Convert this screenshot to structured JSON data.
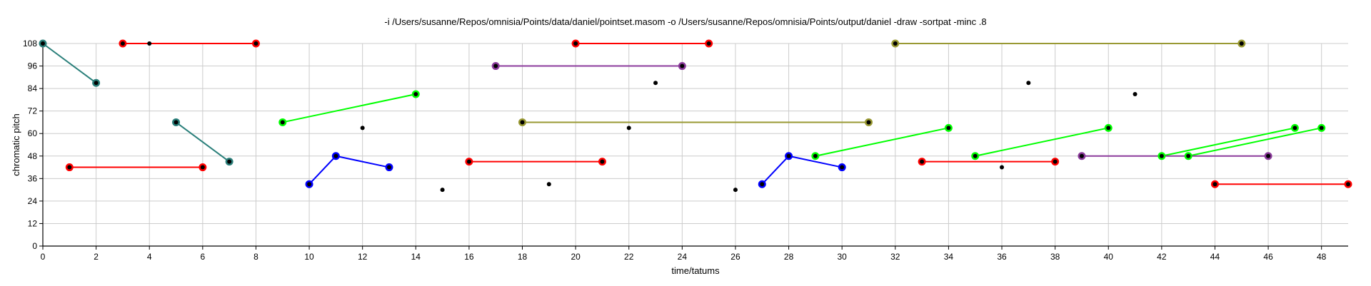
{
  "chart_data": {
    "type": "scatter",
    "title": "-i /Users/susanne/Repos/omnisia/Points/data/daniel/pointset.masom -o /Users/susanne/Repos/omnisia/Points/output/daniel -draw -sortpat -minc .8",
    "xlabel": "time/tatums",
    "ylabel": "chromatic pitch",
    "xlim": [
      0,
      49
    ],
    "ylim": [
      0,
      108
    ],
    "xticks": [
      0,
      2,
      4,
      6,
      8,
      10,
      12,
      14,
      16,
      18,
      20,
      22,
      24,
      26,
      28,
      30,
      32,
      34,
      36,
      38,
      40,
      42,
      44,
      46,
      48
    ],
    "yticks": [
      0,
      12,
      24,
      36,
      48,
      60,
      72,
      84,
      96,
      108
    ],
    "grid": true,
    "legend": "none",
    "point_color": "#000000",
    "points": [
      [
        0,
        108
      ],
      [
        2,
        87
      ],
      [
        3,
        108
      ],
      [
        4,
        108
      ],
      [
        8,
        108
      ],
      [
        1,
        42
      ],
      [
        6,
        42
      ],
      [
        5,
        66
      ],
      [
        7,
        45
      ],
      [
        9,
        66
      ],
      [
        14,
        81
      ],
      [
        10,
        33
      ],
      [
        11,
        48
      ],
      [
        13,
        42
      ],
      [
        12,
        63
      ],
      [
        15,
        30
      ],
      [
        16,
        45
      ],
      [
        21,
        45
      ],
      [
        17,
        96
      ],
      [
        24,
        96
      ],
      [
        18,
        66
      ],
      [
        31,
        66
      ],
      [
        19,
        33
      ],
      [
        20,
        108
      ],
      [
        25,
        108
      ],
      [
        22,
        63
      ],
      [
        23,
        87
      ],
      [
        26,
        30
      ],
      [
        27,
        33
      ],
      [
        28,
        48
      ],
      [
        30,
        42
      ],
      [
        29,
        48
      ],
      [
        34,
        63
      ],
      [
        32,
        108
      ],
      [
        45,
        108
      ],
      [
        33,
        45
      ],
      [
        38,
        45
      ],
      [
        35,
        48
      ],
      [
        40,
        63
      ],
      [
        36,
        42
      ],
      [
        37,
        87
      ],
      [
        39,
        48
      ],
      [
        46,
        48
      ],
      [
        41,
        81
      ],
      [
        42,
        48
      ],
      [
        47,
        63
      ],
      [
        43,
        48
      ],
      [
        48,
        63
      ],
      [
        44,
        33
      ],
      [
        49,
        33
      ]
    ],
    "series": [
      {
        "color": "#2a7f7a",
        "points": [
          [
            0,
            108
          ],
          [
            2,
            87
          ]
        ]
      },
      {
        "color": "#2a7f7a",
        "points": [
          [
            5,
            66
          ],
          [
            7,
            45
          ]
        ]
      },
      {
        "color": "#ff0000",
        "points": [
          [
            1,
            42
          ],
          [
            6,
            42
          ]
        ]
      },
      {
        "color": "#ff0000",
        "points": [
          [
            3,
            108
          ],
          [
            8,
            108
          ]
        ]
      },
      {
        "color": "#ff0000",
        "points": [
          [
            16,
            45
          ],
          [
            21,
            45
          ]
        ]
      },
      {
        "color": "#ff0000",
        "points": [
          [
            20,
            108
          ],
          [
            25,
            108
          ]
        ]
      },
      {
        "color": "#ff0000",
        "points": [
          [
            33,
            45
          ],
          [
            38,
            45
          ]
        ]
      },
      {
        "color": "#ff0000",
        "points": [
          [
            44,
            33
          ],
          [
            49,
            33
          ]
        ]
      },
      {
        "color": "#00ff00",
        "points": [
          [
            9,
            66
          ],
          [
            14,
            81
          ]
        ]
      },
      {
        "color": "#00ff00",
        "points": [
          [
            29,
            48
          ],
          [
            34,
            63
          ]
        ]
      },
      {
        "color": "#00ff00",
        "points": [
          [
            35,
            48
          ],
          [
            40,
            63
          ]
        ]
      },
      {
        "color": "#00ff00",
        "points": [
          [
            42,
            48
          ],
          [
            47,
            63
          ]
        ]
      },
      {
        "color": "#00ff00",
        "points": [
          [
            43,
            48
          ],
          [
            48,
            63
          ]
        ]
      },
      {
        "color": "#0000ff",
        "points": [
          [
            10,
            33
          ],
          [
            11,
            48
          ],
          [
            13,
            42
          ]
        ]
      },
      {
        "color": "#0000ff",
        "points": [
          [
            27,
            33
          ],
          [
            28,
            48
          ],
          [
            30,
            42
          ]
        ]
      },
      {
        "color": "#8b3a9b",
        "points": [
          [
            17,
            96
          ],
          [
            24,
            96
          ]
        ]
      },
      {
        "color": "#8b3a9b",
        "points": [
          [
            39,
            48
          ],
          [
            46,
            48
          ]
        ]
      },
      {
        "color": "#999933",
        "points": [
          [
            18,
            66
          ],
          [
            31,
            66
          ]
        ]
      },
      {
        "color": "#999933",
        "points": [
          [
            32,
            108
          ],
          [
            45,
            108
          ]
        ]
      }
    ]
  }
}
